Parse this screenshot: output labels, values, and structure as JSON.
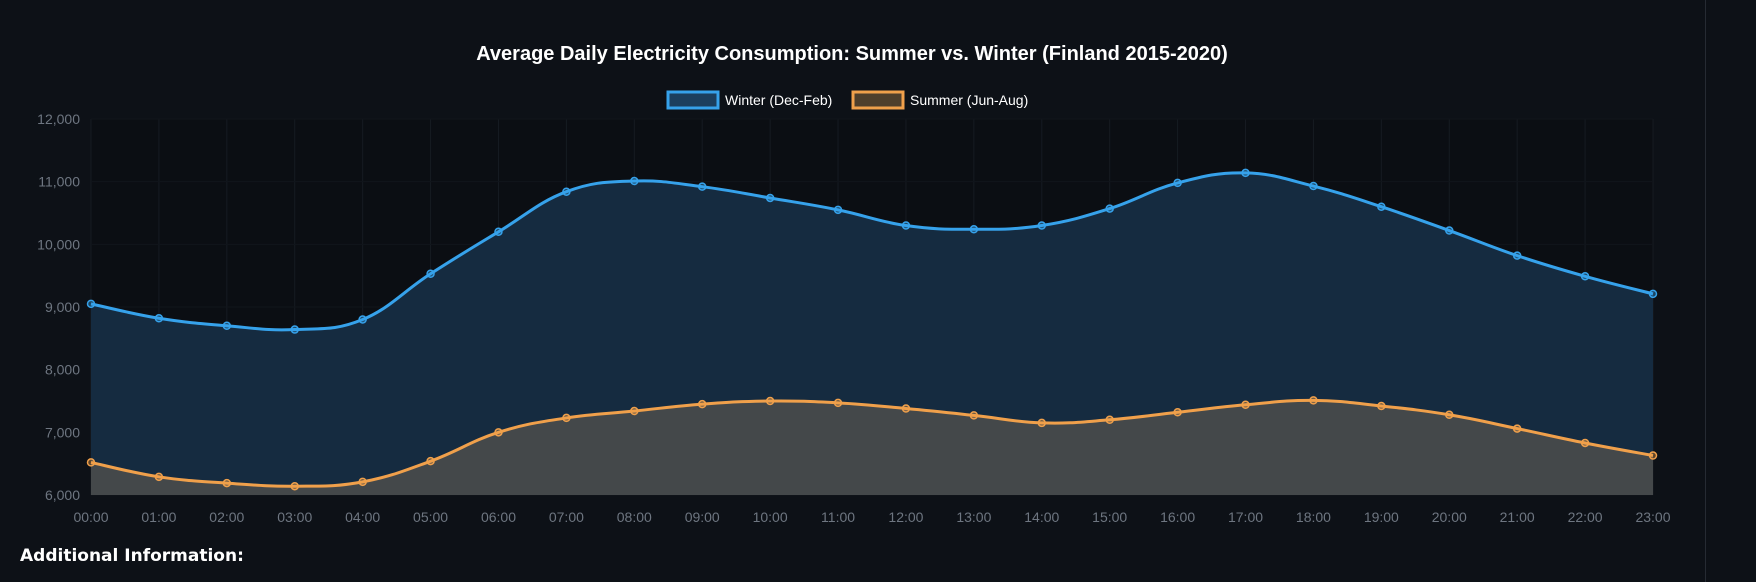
{
  "chart_data": {
    "type": "area",
    "title": "Average Daily Electricity Consumption: Summer vs. Winter (Finland 2015-2020)",
    "xlabel": "",
    "ylabel": "",
    "categories": [
      "00:00",
      "01:00",
      "02:00",
      "03:00",
      "04:00",
      "05:00",
      "06:00",
      "07:00",
      "08:00",
      "09:00",
      "10:00",
      "11:00",
      "12:00",
      "13:00",
      "14:00",
      "15:00",
      "16:00",
      "17:00",
      "18:00",
      "19:00",
      "20:00",
      "21:00",
      "22:00",
      "23:00"
    ],
    "ylim": [
      6000,
      12000
    ],
    "yticks": [
      6000,
      7000,
      8000,
      9000,
      10000,
      11000,
      12000
    ],
    "ytick_labels": [
      "6,000",
      "7,000",
      "8,000",
      "9,000",
      "10,000",
      "11,000",
      "12,000"
    ],
    "legend_position": "top-center",
    "grid": true,
    "series": [
      {
        "name": "Winter (Dec-Feb)",
        "color": "#36a2eb",
        "fill": "rgba(54,162,235,0.25)",
        "values": [
          9050,
          8820,
          8700,
          8640,
          8800,
          9530,
          10200,
          10840,
          11010,
          10920,
          10740,
          10550,
          10300,
          10240,
          10300,
          10570,
          10980,
          11140,
          10930,
          10600,
          10220,
          9820,
          9490,
          9210
        ]
      },
      {
        "name": "Summer (Jun-Aug)",
        "color": "#f0a04b",
        "fill": "rgba(95,90,80,0.45)",
        "values": [
          6520,
          6290,
          6190,
          6140,
          6210,
          6540,
          7000,
          7230,
          7340,
          7450,
          7500,
          7470,
          7380,
          7270,
          7150,
          7200,
          7320,
          7440,
          7510,
          7420,
          7280,
          7060,
          6830,
          6630
        ]
      }
    ]
  },
  "footer": {
    "heading": "Additional Information:"
  }
}
